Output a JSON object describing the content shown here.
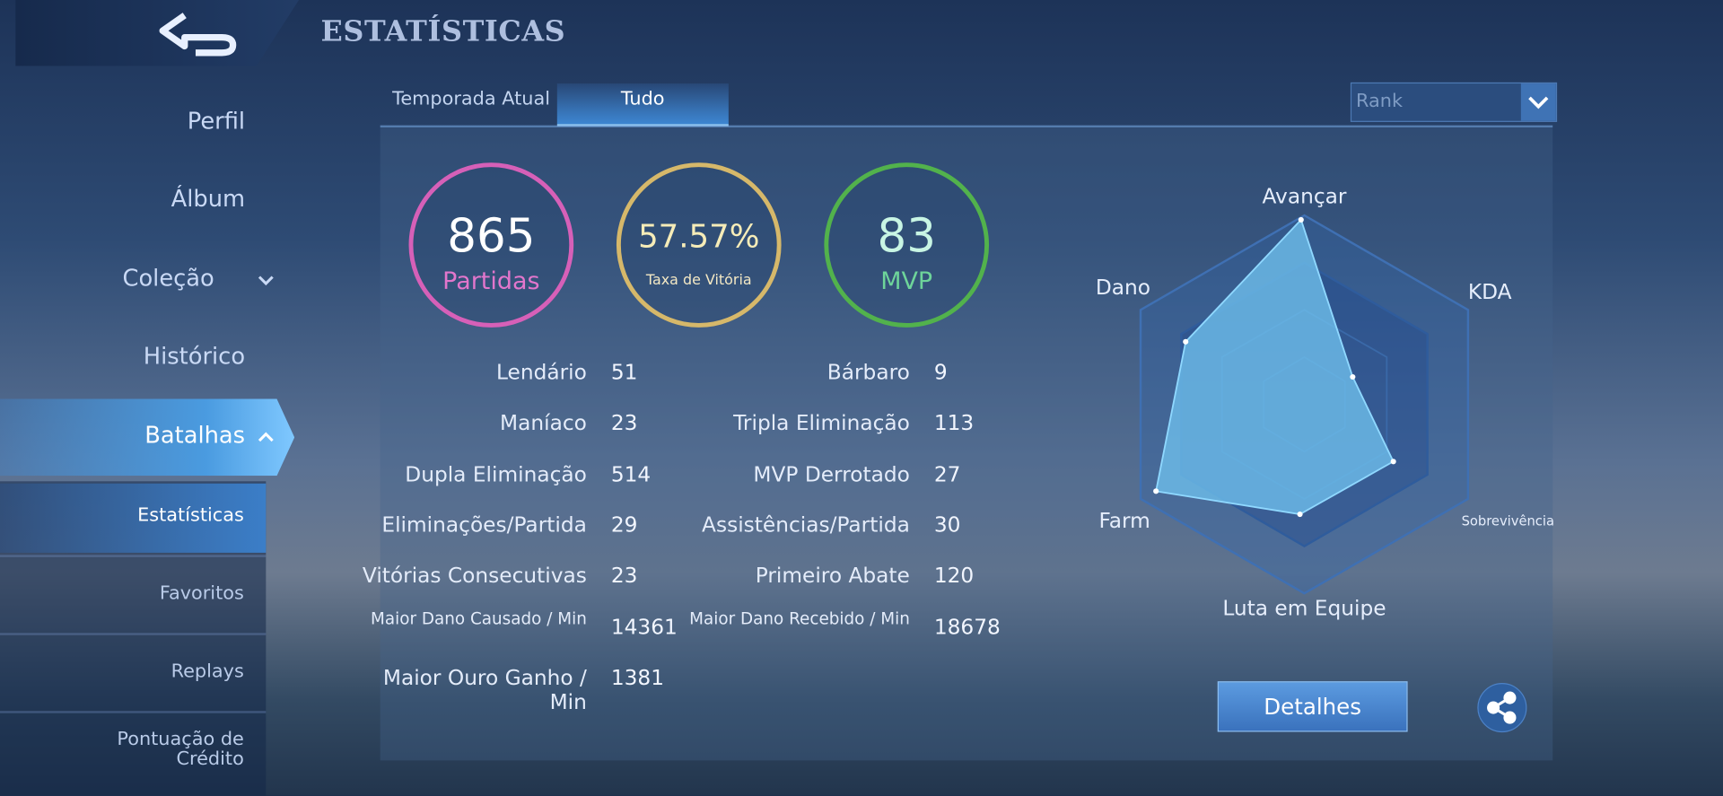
{
  "header": {
    "title": "ESTATÍSTICAS"
  },
  "sidebar": {
    "items": [
      "Perfil",
      "Álbum",
      "Coleção",
      "Histórico",
      "Batalhas"
    ],
    "subitems": [
      "Estatísticas",
      "Favoritos",
      "Replays",
      "Pontuação de Crédito"
    ]
  },
  "tabs": [
    "Temporada Atual",
    "Tudo"
  ],
  "dropdown": "Rank",
  "summary": [
    {
      "value": "865",
      "label": "Partidas"
    },
    {
      "value": "57.57%",
      "label": "Taxa de Vitória"
    },
    {
      "value": "83",
      "label": "MVP"
    }
  ],
  "stats": {
    "left": [
      {
        "label": "Lendário",
        "value": 51
      },
      {
        "label": "Maníaco",
        "value": 23
      },
      {
        "label": "Dupla Eliminação",
        "value": 514
      },
      {
        "label": "Eliminações/Partida",
        "value": 29
      },
      {
        "label": "Vitórias Consecutivas",
        "value": 23
      },
      {
        "label": "Maior Dano Causado / Min",
        "value": 14361
      },
      {
        "label": "Maior Ouro Ganho / Min",
        "value": 1381
      }
    ],
    "right": [
      {
        "label": "Bárbaro",
        "value": 9
      },
      {
        "label": "Tripla Eliminação",
        "value": 113
      },
      {
        "label": "MVP Derrotado",
        "value": 27
      },
      {
        "label": "Assistências/Partida",
        "value": 30
      },
      {
        "label": "Primeiro Abate",
        "value": 120
      },
      {
        "label": "Maior Dano Recebido / Min",
        "value": 18678
      }
    ]
  },
  "radar": {
    "labels": [
      "Avançar",
      "KDA",
      "Sobrevivência",
      "Luta em Equipe",
      "Farm",
      "Dano"
    ]
  },
  "buttons": {
    "details": "Detalhes"
  }
}
